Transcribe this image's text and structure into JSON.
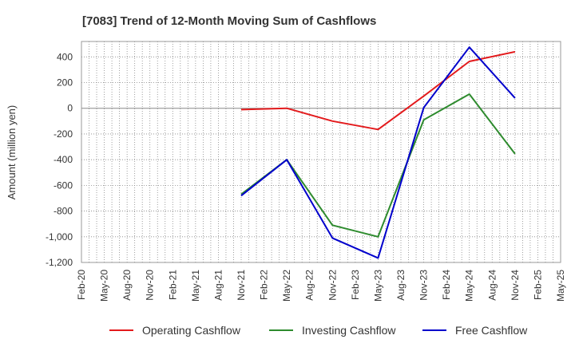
{
  "chart_data": {
    "type": "line",
    "title": "[7083]  Trend of 12-Month Moving Sum of Cashflows",
    "xlabel": "",
    "ylabel": "Amount (million yen)",
    "ylim": [
      -1200,
      520
    ],
    "y_ticks": [
      400,
      200,
      0,
      -200,
      -400,
      -600,
      -800,
      -1000,
      -1200
    ],
    "y_tick_labels": [
      "400",
      "200",
      "0",
      "-200",
      "-400",
      "-600",
      "-800",
      "-1,000",
      "-1,200"
    ],
    "categories": [
      "Feb-20",
      "May-20",
      "Aug-20",
      "Nov-20",
      "Feb-21",
      "May-21",
      "Aug-21",
      "Nov-21",
      "Feb-22",
      "May-22",
      "Aug-22",
      "Nov-22",
      "Feb-23",
      "May-23",
      "Aug-23",
      "Nov-23",
      "Feb-24",
      "May-24",
      "Aug-24",
      "Nov-24",
      "Feb-25",
      "May-25"
    ],
    "grid": true,
    "legend_position": "bottom",
    "series": [
      {
        "name": "Operating Cashflow",
        "color": "#e31a1c",
        "points": [
          {
            "x": "Nov-21",
            "y": -10
          },
          {
            "x": "May-22",
            "y": 0
          },
          {
            "x": "Nov-22",
            "y": -100
          },
          {
            "x": "May-23",
            "y": -165
          },
          {
            "x": "Nov-23",
            "y": 95
          },
          {
            "x": "May-24",
            "y": 365
          },
          {
            "x": "Nov-24",
            "y": 440
          }
        ]
      },
      {
        "name": "Investing Cashflow",
        "color": "#2e8b2e",
        "points": [
          {
            "x": "Nov-21",
            "y": -670
          },
          {
            "x": "May-22",
            "y": -400
          },
          {
            "x": "Nov-22",
            "y": -910
          },
          {
            "x": "May-23",
            "y": -1000
          },
          {
            "x": "Nov-23",
            "y": -90
          },
          {
            "x": "May-24",
            "y": 110
          },
          {
            "x": "Nov-24",
            "y": -355
          }
        ]
      },
      {
        "name": "Free Cashflow",
        "color": "#0000cc",
        "points": [
          {
            "x": "Nov-21",
            "y": -680
          },
          {
            "x": "May-22",
            "y": -400
          },
          {
            "x": "Nov-22",
            "y": -1010
          },
          {
            "x": "May-23",
            "y": -1165
          },
          {
            "x": "Nov-23",
            "y": 5
          },
          {
            "x": "May-24",
            "y": 475
          },
          {
            "x": "Nov-24",
            "y": 80
          }
        ]
      }
    ]
  }
}
